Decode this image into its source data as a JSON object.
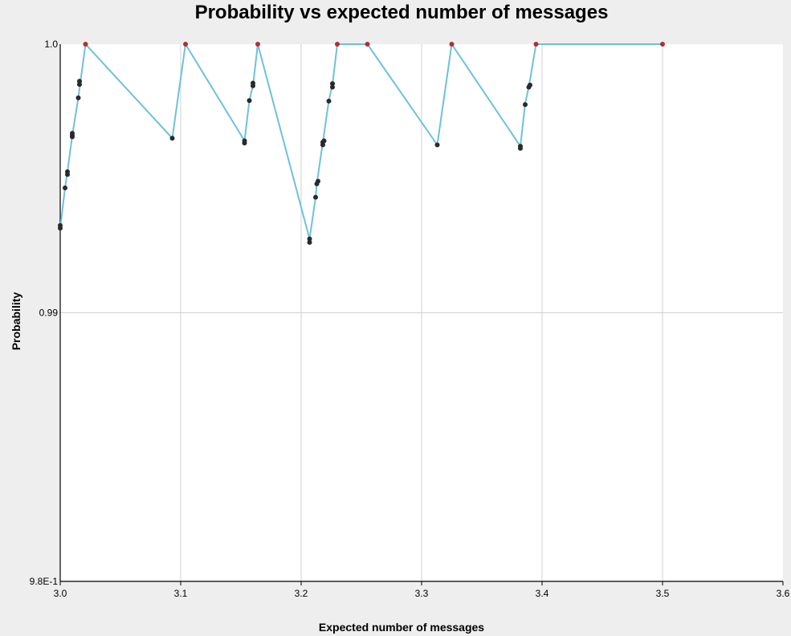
{
  "chart_data": {
    "type": "scatter",
    "title": "Probability vs expected number of messages",
    "xlabel": "Expected number of messages",
    "ylabel": "Probability",
    "xlim": [
      3.0,
      3.6
    ],
    "ylim": [
      0.98,
      1.0
    ],
    "x_ticks": [
      "3.0",
      "3.1",
      "3.2",
      "3.3",
      "3.4",
      "3.5",
      "3.6"
    ],
    "y_ticks": [
      {
        "value": 0.98,
        "label": "9.8E-1"
      },
      {
        "value": 0.99,
        "label": "0.99"
      },
      {
        "value": 1.0,
        "label": "1.0"
      }
    ],
    "grid": true,
    "colors": {
      "line": "#6ec1dc",
      "frontier_point": "#b03030",
      "point": "#2a2a2a",
      "plot_background": "#ffffff",
      "page_background": "#eeeeee",
      "grid": "#d0d0d0"
    },
    "frontier_line": [
      [
        3.0,
        0.99315
      ],
      [
        3.004,
        0.99465
      ],
      [
        3.006,
        0.99525
      ],
      [
        3.01,
        0.9966
      ],
      [
        3.015,
        0.998
      ],
      [
        3.021,
        1.0
      ],
      [
        3.093,
        0.9965
      ],
      [
        3.104,
        1.0
      ],
      [
        3.153,
        0.9964
      ],
      [
        3.157,
        0.9979
      ],
      [
        3.16,
        0.99845
      ],
      [
        3.164,
        1.0
      ],
      [
        3.207,
        0.99275
      ],
      [
        3.212,
        0.9943
      ],
      [
        3.213,
        0.9948
      ],
      [
        3.218,
        0.99635
      ],
      [
        3.223,
        0.9979
      ],
      [
        3.226,
        0.9985
      ],
      [
        3.23,
        1.0
      ],
      [
        3.255,
        1.0
      ],
      [
        3.313,
        0.99625
      ],
      [
        3.325,
        1.0
      ],
      [
        3.382,
        0.9962
      ],
      [
        3.386,
        0.9978
      ],
      [
        3.389,
        0.9984
      ],
      [
        3.395,
        1.0
      ],
      [
        3.5,
        1.0
      ]
    ],
    "points": [
      [
        3.0,
        0.99325
      ],
      [
        3.0,
        0.99315
      ],
      [
        3.004,
        0.99465
      ],
      [
        3.006,
        0.99515
      ],
      [
        3.006,
        0.99525
      ],
      [
        3.01,
        0.9966
      ],
      [
        3.01,
        0.99655
      ],
      [
        3.01,
        0.99668
      ],
      [
        3.015,
        0.998
      ],
      [
        3.016,
        0.9985
      ],
      [
        3.016,
        0.99862
      ],
      [
        3.093,
        0.9965
      ],
      [
        3.153,
        0.9964
      ],
      [
        3.153,
        0.99632
      ],
      [
        3.157,
        0.9979
      ],
      [
        3.16,
        0.99845
      ],
      [
        3.16,
        0.99855
      ],
      [
        3.207,
        0.99275
      ],
      [
        3.207,
        0.99262
      ],
      [
        3.212,
        0.9943
      ],
      [
        3.213,
        0.9948
      ],
      [
        3.214,
        0.9949
      ],
      [
        3.218,
        0.99625
      ],
      [
        3.218,
        0.99635
      ],
      [
        3.219,
        0.9964
      ],
      [
        3.223,
        0.99788
      ],
      [
        3.226,
        0.9984
      ],
      [
        3.226,
        0.99853
      ],
      [
        3.313,
        0.99625
      ],
      [
        3.382,
        0.99612
      ],
      [
        3.382,
        0.9962
      ],
      [
        3.386,
        0.99775
      ],
      [
        3.389,
        0.9984
      ],
      [
        3.39,
        0.99848
      ]
    ],
    "frontier_points": [
      [
        3.021,
        1.0
      ],
      [
        3.104,
        1.0
      ],
      [
        3.164,
        1.0
      ],
      [
        3.23,
        1.0
      ],
      [
        3.255,
        1.0
      ],
      [
        3.325,
        1.0
      ],
      [
        3.395,
        1.0
      ],
      [
        3.5,
        1.0
      ]
    ]
  }
}
